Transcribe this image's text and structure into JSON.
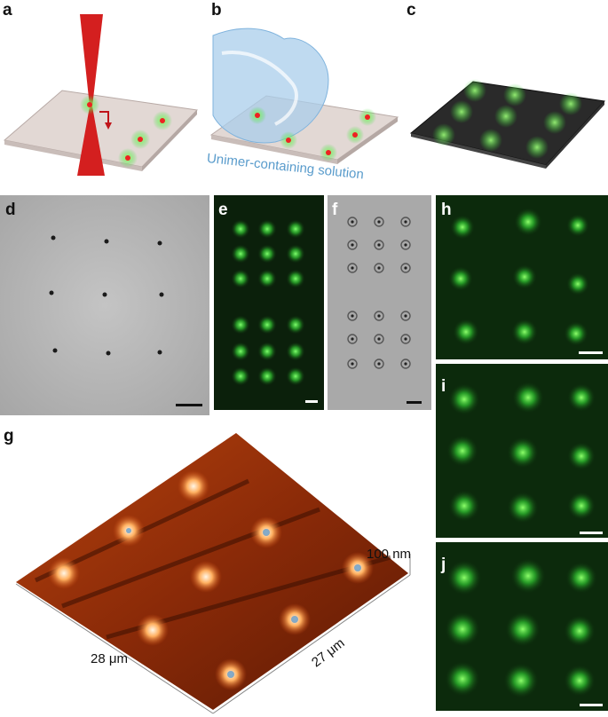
{
  "panels": {
    "a": {
      "label": "a"
    },
    "b": {
      "label": "b",
      "caption": "Unimer-containing solution"
    },
    "c": {
      "label": "c"
    },
    "d": {
      "label": "d"
    },
    "e": {
      "label": "e"
    },
    "f": {
      "label": "f"
    },
    "g": {
      "label": "g",
      "z_scale": "100 nm",
      "x_dim": "28 μm",
      "y_dim": "27 μm"
    },
    "h": {
      "label": "h"
    },
    "i": {
      "label": "i"
    },
    "j": {
      "label": "j"
    }
  },
  "colors": {
    "laser": "#d41f1f",
    "fluorescence": "#3ddc3d",
    "afm_surface": "#8a2a08",
    "caption_blue": "#5a9ccc"
  }
}
